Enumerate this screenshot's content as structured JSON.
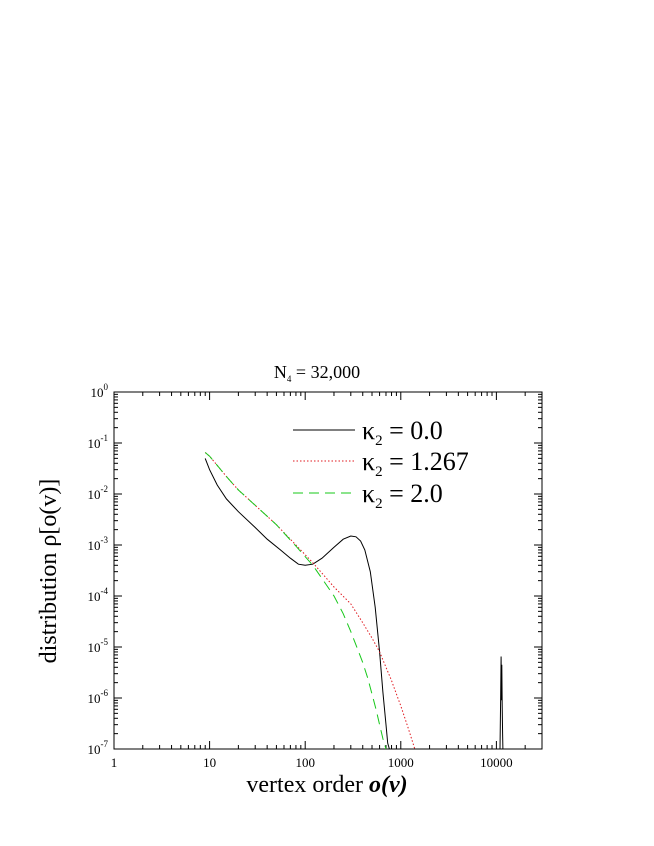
{
  "chart_data": {
    "type": "line",
    "title_main": "N",
    "title_sub": "4",
    "title_rest": " = 32,000",
    "xlabel_main": "vertex order ",
    "xlabel_italic": "o(v)",
    "ylabel": "distribution  ρ[o(v)]",
    "x_scale": "log",
    "y_scale": "log",
    "xlim": [
      1,
      30000
    ],
    "ylim": [
      1e-07,
      1
    ],
    "x_ticks": [
      {
        "value": 1,
        "label": "1"
      },
      {
        "value": 10,
        "label": "10"
      },
      {
        "value": 100,
        "label": "100"
      },
      {
        "value": 1000,
        "label": "1000"
      },
      {
        "value": 10000,
        "label": "10000"
      }
    ],
    "y_ticks": [
      {
        "value": 1,
        "base": "10",
        "exp": "0"
      },
      {
        "value": 0.1,
        "base": "10",
        "exp": "-1"
      },
      {
        "value": 0.01,
        "base": "10",
        "exp": "-2"
      },
      {
        "value": 0.001,
        "base": "10",
        "exp": "-3"
      },
      {
        "value": 0.0001,
        "base": "10",
        "exp": "-4"
      },
      {
        "value": 1e-05,
        "base": "10",
        "exp": "-5"
      },
      {
        "value": 1e-06,
        "base": "10",
        "exp": "-6"
      },
      {
        "value": 1e-07,
        "base": "10",
        "exp": "-7"
      }
    ],
    "legend_position": "top-right",
    "series": [
      {
        "name": "κ",
        "name_sub": "2",
        "name_rest": " = 0.0",
        "color": "#000000",
        "dash": "none",
        "x": [
          9,
          10,
          12,
          15,
          20,
          30,
          40,
          55,
          70,
          85,
          100,
          120,
          150,
          200,
          250,
          300,
          340,
          380,
          420,
          480,
          540,
          600,
          650,
          700,
          730,
          760
        ],
        "y": [
          0.05,
          0.03,
          0.015,
          0.008,
          0.0045,
          0.0022,
          0.0013,
          0.0008,
          0.00055,
          0.00042,
          0.0004,
          0.00042,
          0.00055,
          0.0009,
          0.0013,
          0.0015,
          0.00145,
          0.0012,
          0.0008,
          0.0003,
          6e-05,
          8e-06,
          1.3e-06,
          3e-07,
          1.3e-07,
          1e-07
        ]
      },
      {
        "name": "κ",
        "name_sub": "2",
        "name_rest": " = 1.267",
        "color": "#e0191f",
        "dash": "1.5,2",
        "x": [
          9,
          10,
          15,
          20,
          30,
          50,
          80,
          120,
          150,
          200,
          300,
          400,
          500,
          600,
          700,
          800,
          900,
          1000,
          1200,
          1400
        ],
        "y": [
          0.065,
          0.055,
          0.022,
          0.012,
          0.006,
          0.0025,
          0.001,
          0.00045,
          0.00028,
          0.00015,
          7e-05,
          3e-05,
          1.5e-05,
          8e-06,
          4e-06,
          2.2e-06,
          1.2e-06,
          7e-07,
          2.5e-07,
          1e-07
        ]
      },
      {
        "name": "κ",
        "name_sub": "2",
        "name_rest": " = 2.0",
        "color": "#17c81a",
        "dash": "10,6",
        "x": [
          9,
          10,
          15,
          20,
          30,
          50,
          80,
          120,
          150,
          200,
          250,
          300,
          350,
          400,
          450,
          500,
          550,
          600,
          650,
          700
        ],
        "y": [
          0.065,
          0.055,
          0.022,
          0.012,
          0.006,
          0.0025,
          0.00095,
          0.0004,
          0.00022,
          0.0001,
          4.5e-05,
          2e-05,
          9.5e-06,
          5e-06,
          2.5e-06,
          1.2e-06,
          6e-07,
          3e-07,
          1.6e-07,
          1e-07
        ]
      }
    ],
    "spike": {
      "color": "#000000",
      "x": [
        10900,
        11100,
        11200,
        11300,
        11400,
        11500,
        11600,
        11700
      ],
      "y": [
        1e-07,
        1.2e-06,
        6.5e-06,
        9e-07,
        4.5e-06,
        7e-07,
        2e-07,
        1e-07
      ]
    }
  }
}
